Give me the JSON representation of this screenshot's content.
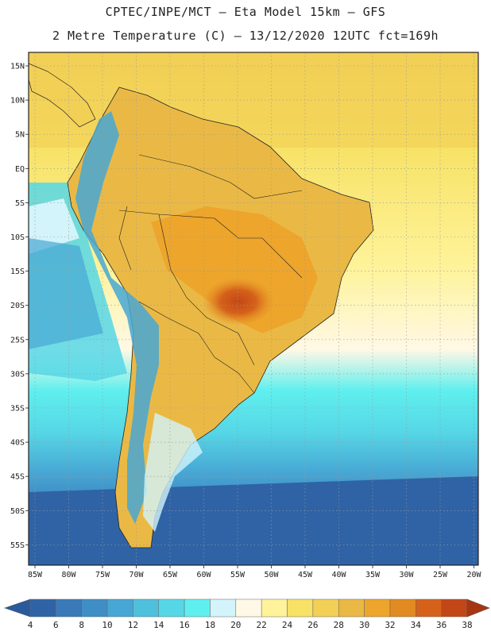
{
  "header": {
    "line1": "CPTEC/INPE/MCT –  Eta Model 15km – GFS",
    "line2": "2 Metre Temperature (C) – 13/12/2020 12UTC fct=169h"
  },
  "map": {
    "lat_labels": [
      "15N",
      "10N",
      "5N",
      "EQ",
      "5S",
      "10S",
      "15S",
      "20S",
      "25S",
      "30S",
      "35S",
      "40S",
      "45S",
      "50S",
      "55S"
    ],
    "lon_labels": [
      "85W",
      "80W",
      "75W",
      "70W",
      "65W",
      "60W",
      "55W",
      "50W",
      "45W",
      "40W",
      "35W",
      "30W",
      "25W",
      "20W"
    ]
  },
  "colorbar": {
    "labels": [
      "4",
      "6",
      "8",
      "10",
      "12",
      "14",
      "16",
      "18",
      "20",
      "22",
      "24",
      "26",
      "28",
      "30",
      "32",
      "34",
      "36",
      "38"
    ],
    "colors": [
      "#2f63a6",
      "#3a7ab8",
      "#3f8fc6",
      "#47a7d4",
      "#4fc0dc",
      "#56d7e6",
      "#5fefee",
      "#d2f4fa",
      "#fff8e6",
      "#fef39a",
      "#f7e265",
      "#f2cf55",
      "#eab945",
      "#eda52c",
      "#e28a22",
      "#d5611a",
      "#c34716",
      "#a83512"
    ],
    "low_color": "#2a5a9c",
    "high_color": "#a83512"
  },
  "colors": {
    "ocean_cold": "#2f63a6",
    "ocean_mid": "#47a7d4",
    "ocean_cool": "#5fefee",
    "ocean_warm": "#f7e265",
    "land_hot": "#eda52c",
    "land_veryhot": "#c34716"
  }
}
